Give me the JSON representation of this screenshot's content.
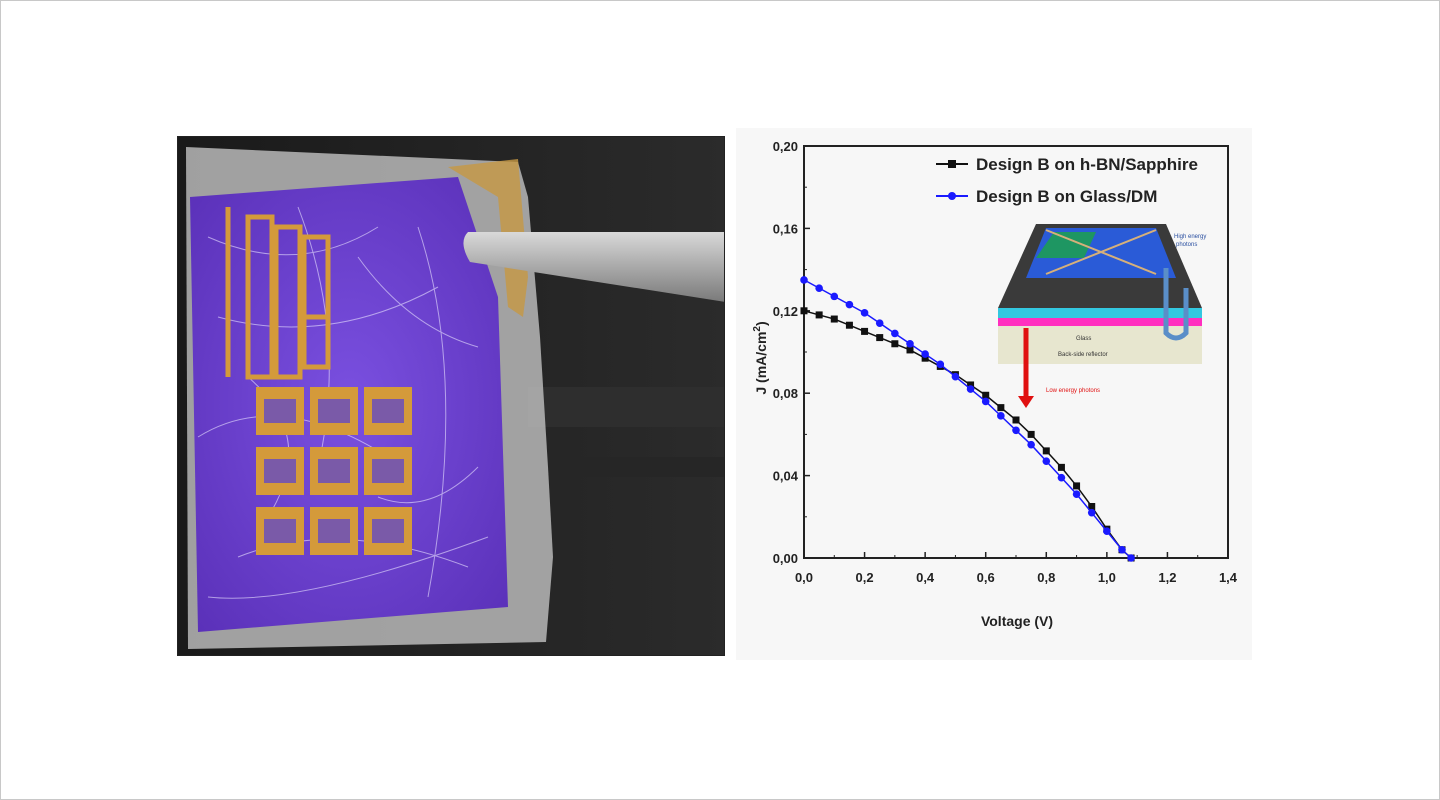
{
  "chart_data": {
    "type": "line",
    "title": "",
    "xlabel": "Voltage (V)",
    "ylabel": "J (mA/cm2)",
    "xlim": [
      0,
      1.4
    ],
    "ylim": [
      0,
      0.2
    ],
    "x_ticks": [
      "0,0",
      "0,2",
      "0,4",
      "0,6",
      "0,8",
      "1,0",
      "1,2",
      "1,4"
    ],
    "y_ticks": [
      "0,00",
      "0,04",
      "0,08",
      "0,12",
      "0,16",
      "0,20"
    ],
    "grid": false,
    "legend_position": "top-right",
    "series": [
      {
        "name": "Design B on h-BN/Sapphire",
        "color": "#111111",
        "x": [
          0,
          0.05,
          0.1,
          0.15,
          0.2,
          0.25,
          0.3,
          0.35,
          0.4,
          0.45,
          0.5,
          0.55,
          0.6,
          0.65,
          0.7,
          0.75,
          0.8,
          0.85,
          0.9,
          0.95,
          1.0,
          1.05,
          1.08
        ],
        "y": [
          0.12,
          0.118,
          0.116,
          0.113,
          0.11,
          0.107,
          0.104,
          0.101,
          0.097,
          0.093,
          0.089,
          0.084,
          0.079,
          0.073,
          0.067,
          0.06,
          0.052,
          0.044,
          0.035,
          0.025,
          0.014,
          0.004,
          0.0
        ]
      },
      {
        "name": "Design B on Glass/DM",
        "color": "#1a1aff",
        "x": [
          0,
          0.05,
          0.1,
          0.15,
          0.2,
          0.25,
          0.3,
          0.35,
          0.4,
          0.45,
          0.5,
          0.55,
          0.6,
          0.65,
          0.7,
          0.75,
          0.8,
          0.85,
          0.9,
          0.95,
          1.0,
          1.05,
          1.08
        ],
        "y": [
          0.135,
          0.131,
          0.127,
          0.123,
          0.119,
          0.114,
          0.109,
          0.104,
          0.099,
          0.094,
          0.088,
          0.082,
          0.076,
          0.069,
          0.062,
          0.055,
          0.047,
          0.039,
          0.031,
          0.022,
          0.013,
          0.004,
          0.0
        ]
      }
    ]
  },
  "inset": {
    "top_right_label_1": "High energy",
    "top_right_label_2": "photons",
    "glass_label": "Glass",
    "reflector_label": "Back-side reflector",
    "low_energy_label": "Low energy photons"
  },
  "colors": {
    "photo_purple": "#6b3fd0",
    "gold": "#d49a3a",
    "background": "#ffffff"
  }
}
